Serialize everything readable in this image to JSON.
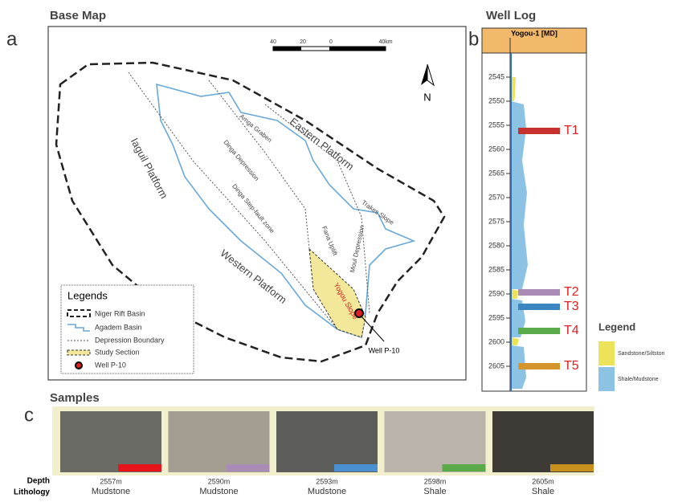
{
  "panel_a": {
    "title": "Base Map",
    "letter": "a",
    "scale_labels": [
      "40",
      "20",
      "0",
      "40km"
    ],
    "north": "N",
    "regions": [
      "Iaguil Platform",
      "Eastern Platform",
      "Western Platform",
      "Amga Graben",
      "Dinga Depression",
      "Dinga Step-fault zone",
      "Trakes Slope",
      "Fana Uplift",
      "Moul Depression",
      "Yogou Slope"
    ],
    "well_label": "Well P-10",
    "legend": {
      "title": "Legends",
      "items": [
        "Niger Rift Basin",
        "Agadem Basin",
        "Depression Boundary",
        "Study Section",
        "Well P-10"
      ]
    }
  },
  "panel_b": {
    "title": "Well Log",
    "letter": "b",
    "header": "Yogou-1 [MD]",
    "depth_ticks": [
      2545,
      2550,
      2555,
      2560,
      2565,
      2570,
      2575,
      2580,
      2585,
      2590,
      2595,
      2600,
      2605
    ],
    "markers": [
      {
        "label": "T1",
        "color": "#c8322e"
      },
      {
        "label": "T2",
        "color": "#a98bb5"
      },
      {
        "label": "T3",
        "color": "#3b86c2"
      },
      {
        "label": "T4",
        "color": "#5aaa4a"
      },
      {
        "label": "T5",
        "color": "#d4962c"
      }
    ],
    "legend": {
      "title": "Legend",
      "items": [
        {
          "label": "Sandstone/Siltston",
          "color": "#ece35a"
        },
        {
          "label": "Shale/Mudstone",
          "color": "#8cc3e4"
        }
      ]
    }
  },
  "panel_c": {
    "title": "Samples",
    "letter": "c",
    "row_labels": [
      "Depth",
      "Lithology"
    ],
    "samples": [
      {
        "depth": "2557m",
        "lithology": "Mudstone",
        "color": "#e8141c"
      },
      {
        "depth": "2590m",
        "lithology": "Mudstone",
        "color": "#a98bb5"
      },
      {
        "depth": "2593m",
        "lithology": "Mudstone",
        "color": "#4a90d0"
      },
      {
        "depth": "2598m",
        "lithology": "Shale",
        "color": "#5aaa4a"
      },
      {
        "depth": "2605m",
        "lithology": "Shale",
        "color": "#c8901c"
      }
    ]
  }
}
